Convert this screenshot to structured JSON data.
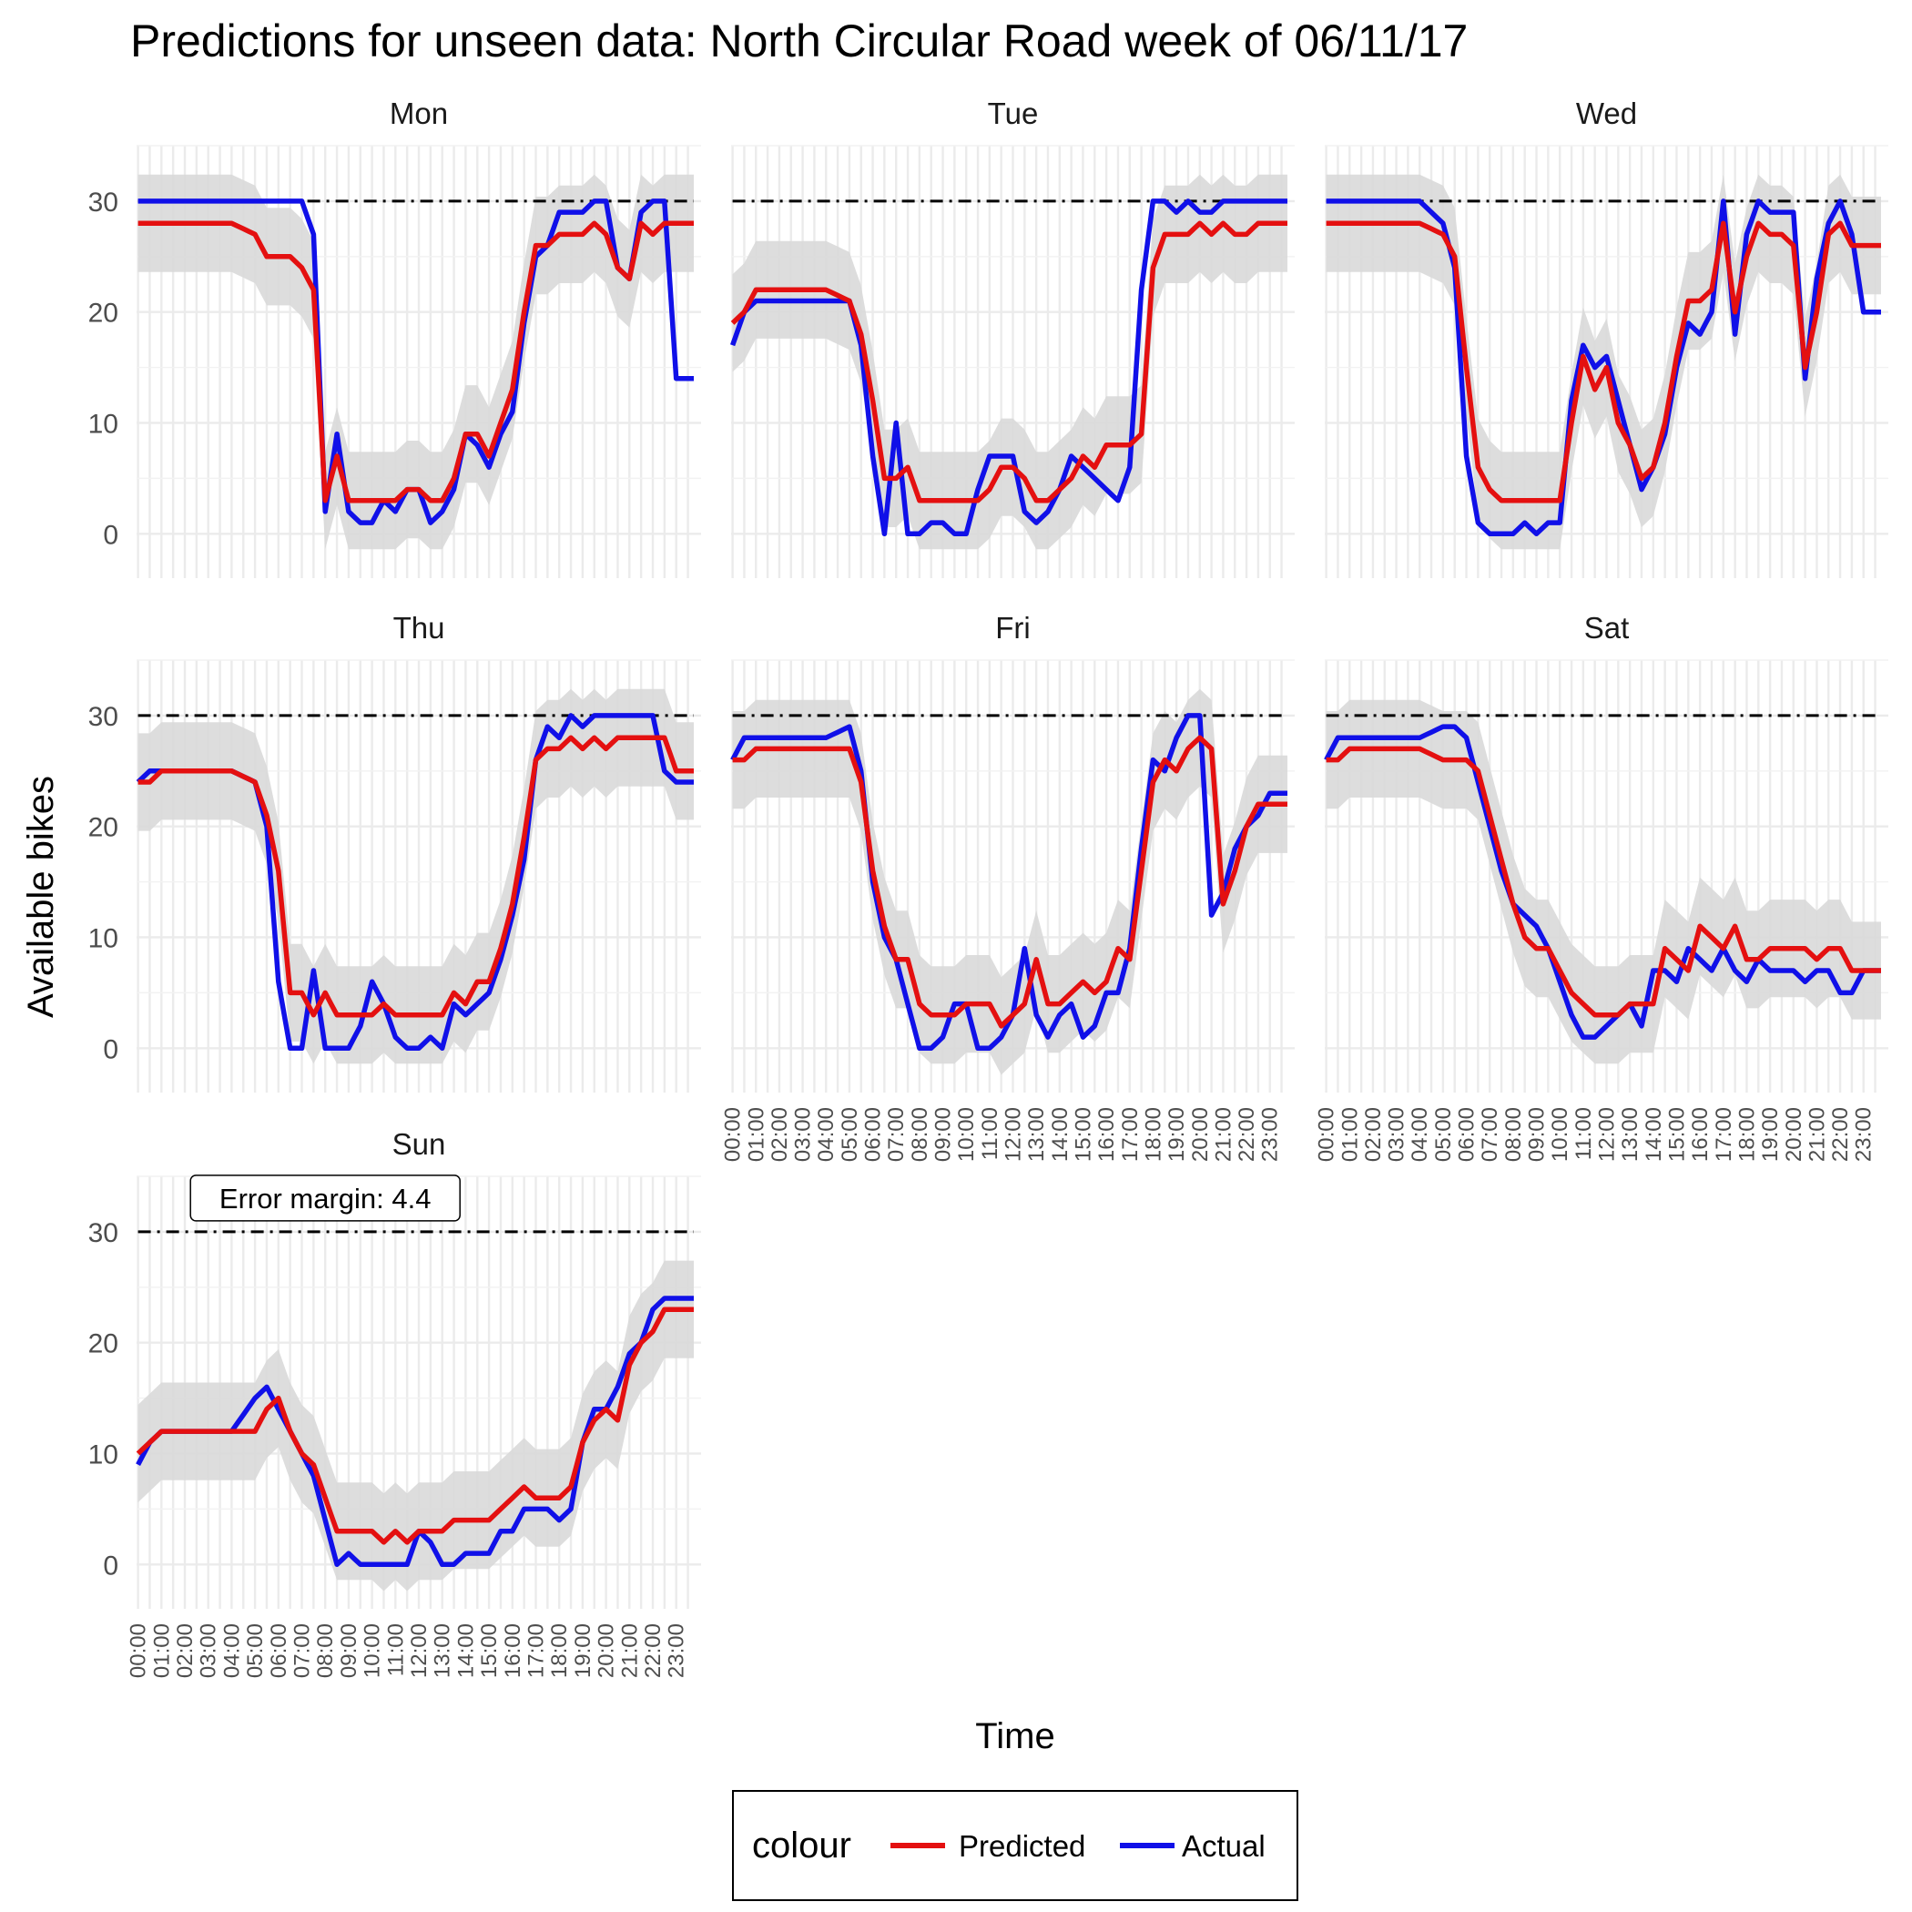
{
  "chart_data": {
    "type": "line",
    "title": "Predictions for unseen data: North Circular Road week of 06/11/17",
    "xlabel": "Time",
    "ylabel": "Available bikes",
    "ylim": [
      -4,
      35
    ],
    "yticks": [
      0,
      10,
      20,
      30
    ],
    "x_step_hours": 0.25,
    "x_start": "00:00",
    "x_tick_labels": [
      "00:00",
      "01:00",
      "02:00",
      "03:00",
      "04:00",
      "05:00",
      "06:00",
      "07:00",
      "08:00",
      "09:00",
      "10:00",
      "11:00",
      "12:00",
      "13:00",
      "14:00",
      "15:00",
      "16:00",
      "17:00",
      "18:00",
      "19:00",
      "20:00",
      "21:00",
      "22:00",
      "23:00"
    ],
    "reference_line": 30,
    "band_halfwidth": 4.4,
    "annotation": "Error margin: 4.4",
    "legend": {
      "title": "colour",
      "position": "bottom"
    },
    "series_styles": [
      {
        "name": "Predicted",
        "color": "#e41010"
      },
      {
        "name": "Actual",
        "color": "#1010e8"
      }
    ],
    "band_color": "#d9d9d9",
    "facets": [
      {
        "label": "Mon",
        "x_knots": [
          0,
          0.5,
          1,
          2,
          3,
          4,
          5,
          5.5,
          6,
          6.5,
          7,
          7.5,
          8,
          8.5,
          9,
          9.5,
          10,
          10.5,
          11,
          11.5,
          12,
          12.5,
          13,
          13.5,
          14,
          14.5,
          15,
          15.5,
          16,
          16.5,
          17,
          17.5,
          18,
          18.5,
          19,
          19.5,
          20,
          20.5,
          21,
          21.5,
          22,
          22.5,
          23
        ],
        "predicted": [
          28,
          28,
          28,
          28,
          28,
          28,
          27,
          25,
          25,
          25,
          24,
          22,
          3,
          7,
          3,
          3,
          3,
          3,
          3,
          4,
          4,
          3,
          3,
          5,
          9,
          9,
          7,
          10,
          13,
          20,
          26,
          26,
          27,
          27,
          27,
          28,
          27,
          24,
          23,
          28,
          27,
          28,
          28
        ],
        "actual": [
          30,
          30,
          30,
          30,
          30,
          30,
          30,
          30,
          30,
          30,
          30,
          27,
          2,
          9,
          2,
          1,
          1,
          3,
          2,
          4,
          4,
          1,
          2,
          4,
          9,
          8,
          6,
          9,
          11,
          19,
          25,
          26,
          29,
          29,
          29,
          30,
          30,
          24,
          23,
          29,
          30,
          30,
          14
        ]
      },
      {
        "label": "Tue",
        "x_knots": [
          0,
          0.5,
          1,
          2,
          3,
          4,
          5,
          5.5,
          6,
          6.5,
          7,
          7.5,
          8,
          8.5,
          9,
          9.5,
          10,
          10.5,
          11,
          11.5,
          12,
          12.5,
          13,
          13.5,
          14,
          14.5,
          15,
          15.5,
          16,
          16.5,
          17,
          17.5,
          18,
          18.5,
          19,
          19.5,
          20,
          20.5,
          21,
          21.5,
          22,
          22.5,
          23
        ],
        "predicted": [
          19,
          20,
          22,
          22,
          22,
          22,
          21,
          18,
          12,
          5,
          5,
          6,
          3,
          3,
          3,
          3,
          3,
          3,
          4,
          6,
          6,
          5,
          3,
          3,
          4,
          5,
          7,
          6,
          8,
          8,
          8,
          9,
          24,
          27,
          27,
          27,
          28,
          27,
          28,
          27,
          27,
          28,
          28
        ],
        "actual": [
          17,
          20,
          21,
          21,
          21,
          21,
          21,
          17,
          7,
          0,
          10,
          0,
          0,
          1,
          1,
          0,
          0,
          4,
          7,
          7,
          7,
          2,
          1,
          2,
          4,
          7,
          6,
          5,
          4,
          3,
          6,
          22,
          30,
          30,
          29,
          30,
          29,
          29,
          30,
          30,
          30,
          30,
          30
        ]
      },
      {
        "label": "Wed",
        "x_knots": [
          0,
          0.5,
          1,
          2,
          3,
          4,
          5,
          5.5,
          6,
          6.5,
          7,
          7.5,
          8,
          8.5,
          9,
          9.5,
          10,
          10.5,
          11,
          11.5,
          12,
          12.5,
          13,
          13.5,
          14,
          14.5,
          15,
          15.5,
          16,
          16.5,
          17,
          17.5,
          18,
          18.5,
          19,
          19.5,
          20,
          20.5,
          21,
          21.5,
          22,
          22.5,
          23
        ],
        "predicted": [
          28,
          28,
          28,
          28,
          28,
          28,
          27,
          25,
          15,
          6,
          4,
          3,
          3,
          3,
          3,
          3,
          3,
          10,
          16,
          13,
          15,
          10,
          8,
          5,
          6,
          10,
          16,
          21,
          21,
          22,
          28,
          20,
          25,
          28,
          27,
          27,
          26,
          15,
          20,
          27,
          28,
          26,
          26
        ],
        "actual": [
          30,
          30,
          30,
          30,
          30,
          30,
          28,
          24,
          7,
          1,
          0,
          0,
          0,
          1,
          0,
          1,
          1,
          12,
          17,
          15,
          16,
          12,
          8,
          4,
          6,
          9,
          15,
          19,
          18,
          20,
          30,
          18,
          27,
          30,
          29,
          29,
          29,
          14,
          23,
          28,
          30,
          27,
          20
        ]
      },
      {
        "label": "Thu",
        "x_knots": [
          0,
          0.5,
          1,
          2,
          3,
          4,
          5,
          5.5,
          6,
          6.5,
          7,
          7.5,
          8,
          8.5,
          9,
          9.5,
          10,
          10.5,
          11,
          11.5,
          12,
          12.5,
          13,
          13.5,
          14,
          14.5,
          15,
          15.5,
          16,
          16.5,
          17,
          17.5,
          18,
          18.5,
          19,
          19.5,
          20,
          20.5,
          21,
          21.5,
          22,
          22.5,
          23
        ],
        "predicted": [
          24,
          24,
          25,
          25,
          25,
          25,
          24,
          21,
          16,
          5,
          5,
          3,
          5,
          3,
          3,
          3,
          3,
          4,
          3,
          3,
          3,
          3,
          3,
          5,
          4,
          6,
          6,
          9,
          13,
          19,
          26,
          27,
          27,
          28,
          27,
          28,
          27,
          28,
          28,
          28,
          28,
          28,
          25
        ],
        "actual": [
          24,
          25,
          25,
          25,
          25,
          25,
          24,
          20,
          6,
          0,
          0,
          7,
          0,
          0,
          0,
          2,
          6,
          4,
          1,
          0,
          0,
          1,
          0,
          4,
          3,
          4,
          5,
          8,
          12,
          17,
          26,
          29,
          28,
          30,
          29,
          30,
          30,
          30,
          30,
          30,
          30,
          25,
          24
        ]
      },
      {
        "label": "Fri",
        "x_knots": [
          0,
          0.5,
          1,
          2,
          3,
          4,
          5,
          5.5,
          6,
          6.5,
          7,
          7.5,
          8,
          8.5,
          9,
          9.5,
          10,
          10.5,
          11,
          11.5,
          12,
          12.5,
          13,
          13.5,
          14,
          14.5,
          15,
          15.5,
          16,
          16.5,
          17,
          17.5,
          18,
          18.5,
          19,
          19.5,
          20,
          20.5,
          21,
          21.5,
          22,
          22.5,
          23
        ],
        "predicted": [
          26,
          26,
          27,
          27,
          27,
          27,
          27,
          24,
          16,
          11,
          8,
          8,
          4,
          3,
          3,
          3,
          4,
          4,
          4,
          2,
          3,
          4,
          8,
          4,
          4,
          5,
          6,
          5,
          6,
          9,
          8,
          16,
          24,
          26,
          25,
          27,
          28,
          27,
          13,
          16,
          20,
          22,
          22
        ],
        "actual": [
          26,
          28,
          28,
          28,
          28,
          28,
          29,
          25,
          15,
          10,
          8,
          4,
          0,
          0,
          1,
          4,
          4,
          0,
          0,
          1,
          3,
          9,
          3,
          1,
          3,
          4,
          1,
          2,
          5,
          5,
          9,
          18,
          26,
          25,
          28,
          30,
          30,
          12,
          14,
          18,
          20,
          21,
          23
        ]
      },
      {
        "label": "Sat",
        "x_knots": [
          0,
          0.5,
          1,
          2,
          3,
          4,
          5,
          5.5,
          6,
          6.5,
          7,
          7.5,
          8,
          8.5,
          9,
          9.5,
          10,
          10.5,
          11,
          11.5,
          12,
          12.5,
          13,
          13.5,
          14,
          14.5,
          15,
          15.5,
          16,
          16.5,
          17,
          17.5,
          18,
          18.5,
          19,
          19.5,
          20,
          20.5,
          21,
          21.5,
          22,
          22.5,
          23
        ],
        "predicted": [
          26,
          26,
          27,
          27,
          27,
          27,
          26,
          26,
          26,
          25,
          21,
          17,
          13,
          10,
          9,
          9,
          7,
          5,
          4,
          3,
          3,
          3,
          4,
          4,
          4,
          9,
          8,
          7,
          11,
          10,
          9,
          11,
          8,
          8,
          9,
          9,
          9,
          9,
          8,
          9,
          9,
          7,
          7
        ],
        "actual": [
          26,
          28,
          28,
          28,
          28,
          28,
          29,
          29,
          28,
          24,
          20,
          16,
          13,
          12,
          11,
          9,
          6,
          3,
          1,
          1,
          2,
          3,
          4,
          2,
          7,
          7,
          6,
          9,
          8,
          7,
          9,
          7,
          6,
          8,
          7,
          7,
          7,
          6,
          7,
          7,
          5,
          5,
          7
        ]
      },
      {
        "label": "Sun",
        "x_knots": [
          0,
          0.5,
          1,
          2,
          3,
          4,
          5,
          5.5,
          6,
          6.5,
          7,
          7.5,
          8,
          8.5,
          9,
          9.5,
          10,
          10.5,
          11,
          11.5,
          12,
          12.5,
          13,
          13.5,
          14,
          14.5,
          15,
          15.5,
          16,
          16.5,
          17,
          17.5,
          18,
          18.5,
          19,
          19.5,
          20,
          20.5,
          21,
          21.5,
          22,
          22.5,
          23
        ],
        "predicted": [
          10,
          11,
          12,
          12,
          12,
          12,
          12,
          14,
          15,
          12,
          10,
          9,
          6,
          3,
          3,
          3,
          3,
          2,
          3,
          2,
          3,
          3,
          3,
          4,
          4,
          4,
          4,
          5,
          6,
          7,
          6,
          6,
          6,
          7,
          11,
          13,
          14,
          13,
          18,
          20,
          21,
          23,
          23
        ],
        "actual": [
          9,
          11,
          12,
          12,
          12,
          12,
          15,
          16,
          14,
          12,
          10,
          8,
          4,
          0,
          1,
          0,
          0,
          0,
          0,
          0,
          3,
          2,
          0,
          0,
          1,
          1,
          1,
          3,
          3,
          5,
          5,
          5,
          4,
          5,
          11,
          14,
          14,
          16,
          19,
          20,
          23,
          24,
          24
        ]
      }
    ]
  }
}
